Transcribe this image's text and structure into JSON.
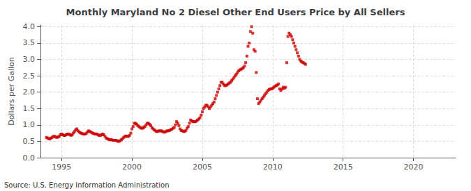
{
  "chart_data": {
    "type": "scatter",
    "title": "Monthly Maryland No 2 Diesel Other End Users Price by All Sellers",
    "ylabel": "Dollars per Gallon",
    "annotations": [
      "Source: U.S. Energy Information Administration"
    ],
    "color": "#cc0000",
    "marker": "square",
    "grid": true,
    "xlim": [
      1993.5,
      2023.0
    ],
    "ylim": [
      0.0,
      4.05
    ],
    "xticks": [
      1995,
      2000,
      2005,
      2010,
      2015,
      2020
    ],
    "yticks": [
      {
        "value": 0.0,
        "label": "0.0"
      },
      0.5,
      {
        "value": 1.0,
        "label": "1.0"
      },
      1.5,
      {
        "value": 2.0,
        "label": "2.0"
      },
      2.5,
      {
        "value": 3.0,
        "label": "3.0"
      },
      3.5,
      {
        "value": 4.0,
        "label": "4.0"
      }
    ],
    "x": [
      1993.917,
      1994.0,
      1994.083,
      1994.167,
      1994.25,
      1994.333,
      1994.417,
      1994.5,
      1994.583,
      1994.667,
      1994.75,
      1994.833,
      1994.917,
      1995.0,
      1995.083,
      1995.167,
      1995.25,
      1995.333,
      1995.417,
      1995.5,
      1995.583,
      1995.667,
      1995.75,
      1995.833,
      1995.917,
      1996.0,
      1996.083,
      1996.167,
      1996.25,
      1996.333,
      1996.417,
      1996.5,
      1996.583,
      1996.667,
      1996.75,
      1996.833,
      1996.917,
      1997.0,
      1997.083,
      1997.167,
      1997.25,
      1997.333,
      1997.417,
      1997.5,
      1997.583,
      1997.667,
      1997.75,
      1997.833,
      1997.917,
      1998.0,
      1998.083,
      1998.167,
      1998.25,
      1998.333,
      1998.417,
      1998.5,
      1998.583,
      1998.667,
      1998.75,
      1998.833,
      1998.917,
      1999.0,
      1999.083,
      1999.167,
      1999.25,
      1999.333,
      1999.417,
      1999.5,
      1999.583,
      1999.667,
      1999.75,
      1999.833,
      1999.917,
      2000.0,
      2000.083,
      2000.167,
      2000.25,
      2000.333,
      2000.417,
      2000.5,
      2000.583,
      2000.667,
      2000.75,
      2000.833,
      2000.917,
      2001.0,
      2001.083,
      2001.167,
      2001.25,
      2001.333,
      2001.417,
      2001.5,
      2001.583,
      2001.667,
      2001.75,
      2001.833,
      2001.917,
      2002.0,
      2002.083,
      2002.167,
      2002.25,
      2002.333,
      2002.417,
      2002.5,
      2002.583,
      2002.667,
      2002.75,
      2002.833,
      2002.917,
      2003.0,
      2003.083,
      2003.167,
      2003.25,
      2003.333,
      2003.417,
      2003.5,
      2003.583,
      2003.667,
      2003.75,
      2003.833,
      2003.917,
      2004.0,
      2004.083,
      2004.167,
      2004.25,
      2004.333,
      2004.417,
      2004.5,
      2004.583,
      2004.667,
      2004.75,
      2004.833,
      2004.917,
      2005.0,
      2005.083,
      2005.167,
      2005.25,
      2005.333,
      2005.417,
      2005.5,
      2005.583,
      2005.667,
      2005.75,
      2005.833,
      2005.917,
      2006.0,
      2006.083,
      2006.167,
      2006.25,
      2006.333,
      2006.417,
      2006.5,
      2006.583,
      2006.667,
      2006.75,
      2006.833,
      2006.917,
      2007.0,
      2007.083,
      2007.167,
      2007.25,
      2007.333,
      2007.417,
      2007.5,
      2007.583,
      2007.667,
      2007.75,
      2007.833,
      2007.917,
      2008.0,
      2008.083,
      2008.167,
      2008.25,
      2008.333,
      2008.417,
      2008.5,
      2008.583,
      2008.667,
      2008.75,
      2008.833,
      2008.917,
      2009.0,
      2009.083,
      2009.167,
      2009.25,
      2009.333,
      2009.417,
      2009.5,
      2009.583,
      2009.667,
      2009.75,
      2009.833,
      2009.917,
      2010.0,
      2010.083,
      2010.167,
      2010.25,
      2010.333,
      2010.417,
      2010.5,
      2010.583,
      2010.667,
      2010.75,
      2010.833,
      2010.917,
      2011.0,
      2011.083,
      2011.167,
      2011.25,
      2011.333,
      2011.417,
      2011.5,
      2011.583,
      2011.667,
      2011.75,
      2011.833,
      2011.917,
      2012.0,
      2012.083,
      2012.167,
      2012.25,
      2012.333
    ],
    "values": [
      0.62,
      0.6,
      0.58,
      0.57,
      0.6,
      0.62,
      0.65,
      0.65,
      0.63,
      0.62,
      0.63,
      0.65,
      0.7,
      0.72,
      0.7,
      0.68,
      0.68,
      0.7,
      0.72,
      0.72,
      0.7,
      0.68,
      0.7,
      0.75,
      0.8,
      0.85,
      0.88,
      0.82,
      0.78,
      0.76,
      0.74,
      0.73,
      0.72,
      0.72,
      0.74,
      0.78,
      0.82,
      0.8,
      0.78,
      0.76,
      0.74,
      0.73,
      0.72,
      0.72,
      0.7,
      0.68,
      0.68,
      0.7,
      0.72,
      0.7,
      0.65,
      0.6,
      0.58,
      0.56,
      0.55,
      0.55,
      0.54,
      0.53,
      0.53,
      0.53,
      0.52,
      0.5,
      0.5,
      0.52,
      0.55,
      0.58,
      0.62,
      0.65,
      0.66,
      0.65,
      0.65,
      0.68,
      0.75,
      0.88,
      0.95,
      1.05,
      1.05,
      1.02,
      0.98,
      0.95,
      0.92,
      0.9,
      0.9,
      0.92,
      0.95,
      1.0,
      1.05,
      1.05,
      1.02,
      0.98,
      0.92,
      0.88,
      0.85,
      0.82,
      0.8,
      0.8,
      0.82,
      0.82,
      0.82,
      0.8,
      0.78,
      0.78,
      0.8,
      0.82,
      0.82,
      0.83,
      0.85,
      0.87,
      0.9,
      0.92,
      1.0,
      1.1,
      1.05,
      0.98,
      0.88,
      0.83,
      0.82,
      0.8,
      0.8,
      0.83,
      0.9,
      0.95,
      1.05,
      1.15,
      1.12,
      1.1,
      1.1,
      1.1,
      1.12,
      1.15,
      1.18,
      1.22,
      1.3,
      1.4,
      1.5,
      1.55,
      1.6,
      1.6,
      1.55,
      1.5,
      1.55,
      1.6,
      1.65,
      1.7,
      1.8,
      1.9,
      2.0,
      2.1,
      2.2,
      2.3,
      2.3,
      2.25,
      2.2,
      2.2,
      2.22,
      2.25,
      2.28,
      2.3,
      2.35,
      2.4,
      2.45,
      2.5,
      2.55,
      2.6,
      2.65,
      2.68,
      2.7,
      2.72,
      2.75,
      2.8,
      2.9,
      3.1,
      3.4,
      3.5,
      3.85,
      4.0,
      3.8,
      3.3,
      3.25,
      2.6,
      1.8,
      1.65,
      1.7,
      1.75,
      1.8,
      1.85,
      1.9,
      1.95,
      2.0,
      2.05,
      2.08,
      2.1,
      2.1,
      2.12,
      2.15,
      2.18,
      2.2,
      2.22,
      2.25,
      2.1,
      2.05,
      2.1,
      2.15,
      2.12,
      2.15,
      2.9,
      3.7,
      3.8,
      3.75,
      3.7,
      3.6,
      3.5,
      3.4,
      3.3,
      3.2,
      3.1,
      3.0,
      2.95,
      2.92,
      2.9,
      2.88,
      2.85
    ]
  }
}
